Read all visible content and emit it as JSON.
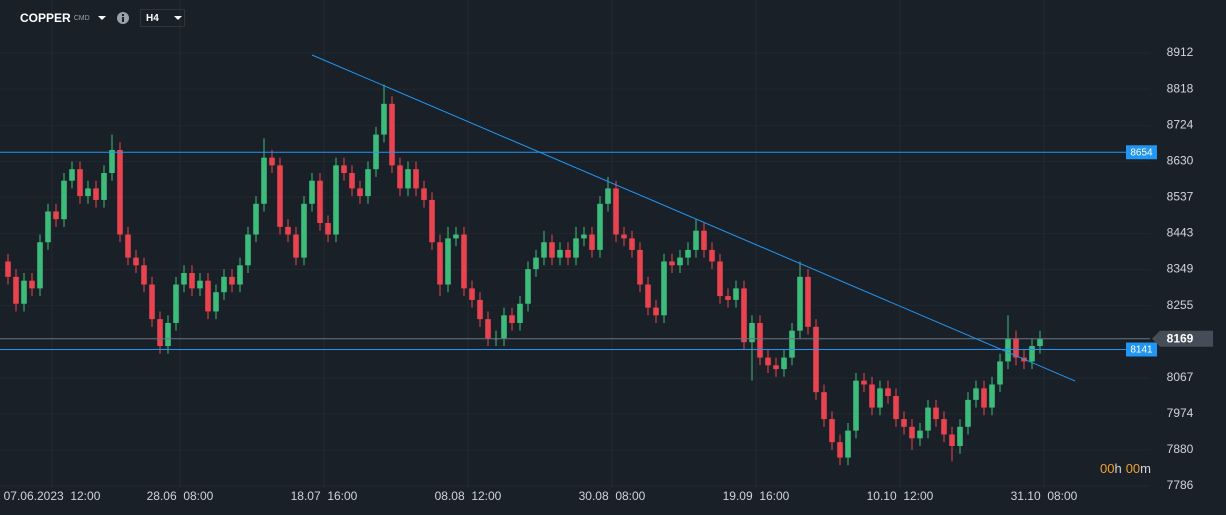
{
  "header": {
    "symbol": "COPPER",
    "market": "CMD",
    "timeframe": "H4"
  },
  "chart_data": {
    "type": "candlestick",
    "up_color": "#3dbb7a",
    "down_color": "#e8434f",
    "open": [
      8370,
      8330,
      8260,
      8320,
      8300,
      8420,
      8500,
      8480,
      8580,
      8610,
      8540,
      8560,
      8530,
      8600,
      8660,
      8440,
      8380,
      8360,
      8310,
      8220,
      8150,
      8210,
      8310,
      8340,
      8300,
      8320,
      8240,
      8290,
      8330,
      8310,
      8360,
      8440,
      8520,
      8640,
      8620,
      8460,
      8440,
      8380,
      8520,
      8580,
      8470,
      8440,
      8620,
      8600,
      8560,
      8540,
      8610,
      8700,
      8780,
      8620,
      8560,
      8610,
      8560,
      8530,
      8420,
      8310,
      8430,
      8440,
      8300,
      8270,
      8220,
      8170,
      8170,
      8230,
      8210,
      8260,
      8350,
      8380,
      8420,
      8380,
      8400,
      8380,
      8430,
      8440,
      8400,
      8520,
      8560,
      8440,
      8430,
      8400,
      8310,
      8250,
      8230,
      8370,
      8360,
      8380,
      8400,
      8450,
      8400,
      8370,
      8280,
      8270,
      8300,
      8160,
      8210,
      8120,
      8100,
      8090,
      8120,
      8190,
      8330,
      8200,
      8030,
      7960,
      7900,
      7860,
      7930,
      8060,
      8050,
      7990,
      8040,
      8020,
      7960,
      7940,
      7910,
      7930,
      7990,
      7960,
      7920,
      7890,
      7940,
      8010,
      8040,
      7990,
      8050,
      8110,
      8170,
      8120,
      8110,
      8150
    ],
    "high": [
      8390,
      8350,
      8340,
      8340,
      8440,
      8520,
      8520,
      8600,
      8630,
      8630,
      8580,
      8580,
      8620,
      8700,
      8680,
      8460,
      8400,
      8380,
      8330,
      8240,
      8230,
      8330,
      8360,
      8360,
      8340,
      8340,
      8310,
      8350,
      8350,
      8380,
      8460,
      8540,
      8690,
      8660,
      8640,
      8480,
      8460,
      8540,
      8600,
      8600,
      8490,
      8640,
      8640,
      8620,
      8580,
      8630,
      8720,
      8830,
      8800,
      8640,
      8630,
      8630,
      8580,
      8550,
      8440,
      8460,
      8460,
      8460,
      8320,
      8290,
      8240,
      8190,
      8250,
      8250,
      8280,
      8370,
      8400,
      8450,
      8440,
      8420,
      8420,
      8460,
      8460,
      8460,
      8540,
      8590,
      8580,
      8460,
      8450,
      8420,
      8330,
      8270,
      8390,
      8390,
      8400,
      8420,
      8480,
      8470,
      8420,
      8390,
      8300,
      8320,
      8320,
      8230,
      8230,
      8140,
      8120,
      8140,
      8210,
      8370,
      8350,
      8220,
      8050,
      7980,
      7920,
      7950,
      8080,
      8080,
      8070,
      8060,
      8060,
      8040,
      7980,
      7960,
      7950,
      8010,
      8010,
      7980,
      7940,
      7960,
      8030,
      8060,
      8060,
      8070,
      8130,
      8230,
      8190,
      8140,
      8170,
      8190
    ],
    "low": [
      8310,
      8240,
      8240,
      8280,
      8280,
      8400,
      8460,
      8460,
      8560,
      8520,
      8520,
      8510,
      8510,
      8580,
      8420,
      8360,
      8340,
      8290,
      8200,
      8130,
      8130,
      8190,
      8290,
      8280,
      8280,
      8220,
      8220,
      8270,
      8290,
      8290,
      8340,
      8420,
      8500,
      8600,
      8440,
      8420,
      8360,
      8360,
      8500,
      8450,
      8420,
      8420,
      8580,
      8540,
      8520,
      8520,
      8590,
      8680,
      8600,
      8540,
      8540,
      8540,
      8510,
      8400,
      8280,
      8290,
      8410,
      8280,
      8250,
      8200,
      8150,
      8150,
      8150,
      8190,
      8190,
      8240,
      8330,
      8360,
      8360,
      8360,
      8360,
      8360,
      8410,
      8380,
      8380,
      8500,
      8420,
      8410,
      8380,
      8290,
      8230,
      8210,
      8210,
      8340,
      8340,
      8360,
      8380,
      8380,
      8350,
      8260,
      8250,
      8250,
      8140,
      8060,
      8100,
      8080,
      8070,
      8070,
      8100,
      8170,
      8180,
      8010,
      7940,
      7880,
      7840,
      7840,
      7910,
      8030,
      7970,
      7970,
      8000,
      7940,
      7920,
      7880,
      7890,
      7910,
      7940,
      7900,
      7850,
      7870,
      7920,
      7990,
      7970,
      7970,
      8030,
      8090,
      8100,
      8090,
      8090,
      8130
    ],
    "close": [
      8330,
      8260,
      8320,
      8300,
      8420,
      8500,
      8480,
      8580,
      8610,
      8540,
      8560,
      8530,
      8600,
      8660,
      8440,
      8380,
      8360,
      8310,
      8220,
      8150,
      8210,
      8310,
      8340,
      8300,
      8320,
      8240,
      8290,
      8330,
      8310,
      8360,
      8440,
      8520,
      8640,
      8620,
      8460,
      8440,
      8380,
      8520,
      8580,
      8470,
      8440,
      8620,
      8600,
      8560,
      8540,
      8610,
      8700,
      8780,
      8620,
      8560,
      8610,
      8560,
      8530,
      8420,
      8310,
      8430,
      8440,
      8300,
      8270,
      8220,
      8170,
      8170,
      8230,
      8210,
      8260,
      8350,
      8380,
      8420,
      8380,
      8400,
      8380,
      8430,
      8440,
      8400,
      8520,
      8560,
      8440,
      8430,
      8400,
      8310,
      8250,
      8230,
      8370,
      8360,
      8380,
      8400,
      8450,
      8400,
      8370,
      8280,
      8270,
      8300,
      8160,
      8210,
      8120,
      8100,
      8090,
      8120,
      8190,
      8330,
      8200,
      8030,
      7960,
      7900,
      7860,
      7930,
      8060,
      8050,
      7990,
      8040,
      8020,
      7960,
      7940,
      7910,
      7930,
      7990,
      7960,
      7920,
      7890,
      7940,
      8010,
      8040,
      7990,
      8050,
      8110,
      8170,
      8120,
      8110,
      8150,
      8169
    ],
    "xlim": [
      0,
      130
    ],
    "xticks": [
      {
        "value": 6,
        "label": "07.06.2023  12:00"
      },
      {
        "value": 22,
        "label": "28.06  08:00"
      },
      {
        "value": 40,
        "label": "18.07  16:00"
      },
      {
        "value": 58,
        "label": "08.08  12:00"
      },
      {
        "value": 76,
        "label": "30.08  08:00"
      },
      {
        "value": 94,
        "label": "19.09  16:00"
      },
      {
        "value": 112,
        "label": "10.10  12:00"
      },
      {
        "value": 130,
        "label": "31.10  08:00"
      }
    ],
    "ylim": [
      7786,
      9050
    ],
    "yticks": [
      7786,
      7880,
      7974,
      8067,
      8255,
      8349,
      8443,
      8537,
      8630,
      8724,
      8818,
      8912
    ],
    "grid": true,
    "hlines": [
      {
        "value": 8654,
        "color": "#2196f3"
      },
      {
        "value": 8141,
        "color": "#2196f3"
      }
    ],
    "last_price": 8169,
    "trendline": {
      "x": [
        38.5,
        133.9
      ],
      "y": [
        8907,
        8059
      ],
      "color": "#2196f3"
    },
    "timer": {
      "hours": "00",
      "hours_unit": "h",
      "minutes": "00",
      "minutes_unit": "m"
    }
  }
}
